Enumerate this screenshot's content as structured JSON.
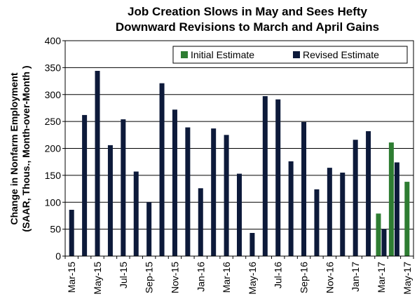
{
  "chart_data": {
    "type": "bar",
    "title_lines": [
      "Job Creation Slows in May and Sees Hefty",
      "Downward Revisions to March and April Gains"
    ],
    "ylabel_lines": [
      "Change in Nonfarm Employment",
      "(SAAR, Thous., Month-over-Month )"
    ],
    "xlabel": "",
    "ylim": [
      0,
      400
    ],
    "yticks": [
      0,
      50,
      100,
      150,
      200,
      250,
      300,
      350,
      400
    ],
    "grid": true,
    "legend_position": "top-right",
    "categories": [
      "Mar-15",
      "Apr-15",
      "May-15",
      "Jun-15",
      "Jul-15",
      "Aug-15",
      "Sep-15",
      "Oct-15",
      "Nov-15",
      "Dec-15",
      "Jan-16",
      "Feb-16",
      "Mar-16",
      "Apr-16",
      "May-16",
      "Jun-16",
      "Jul-16",
      "Aug-16",
      "Sep-16",
      "Oct-16",
      "Nov-16",
      "Dec-16",
      "Jan-17",
      "Feb-17",
      "Mar-17",
      "Apr-17",
      "May-17"
    ],
    "tick_labels": [
      "Mar-15",
      "May-15",
      "Jul-15",
      "Sep-15",
      "Nov-15",
      "Jan-16",
      "Mar-16",
      "May-16",
      "Jul-16",
      "Sep-16",
      "Nov-16",
      "Jan-17",
      "Mar-17",
      "May-17"
    ],
    "series": [
      {
        "name": "Initial Estimate",
        "color": "#2e7d32",
        "values": [
          null,
          null,
          null,
          null,
          null,
          null,
          null,
          null,
          null,
          null,
          null,
          null,
          null,
          null,
          null,
          null,
          null,
          null,
          null,
          null,
          null,
          null,
          null,
          null,
          79,
          211,
          138
        ]
      },
      {
        "name": "Revised Estimate",
        "color": "#0d1a3a",
        "values": [
          86,
          262,
          344,
          206,
          254,
          157,
          100,
          321,
          272,
          239,
          126,
          237,
          225,
          153,
          43,
          297,
          291,
          176,
          249,
          124,
          164,
          155,
          216,
          232,
          50,
          174,
          null
        ]
      }
    ]
  }
}
